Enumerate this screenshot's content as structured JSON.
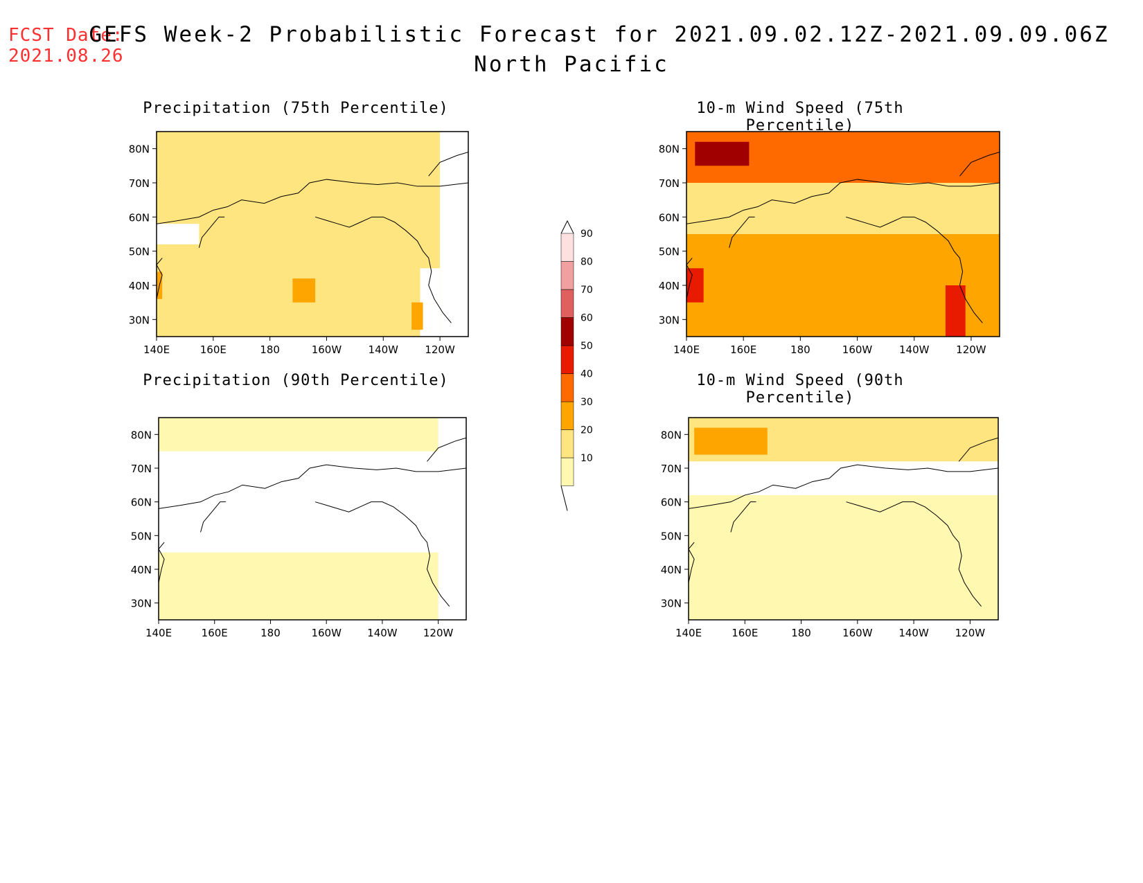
{
  "fcst_date": {
    "label": "FCST Date:",
    "value": "2021.08.26"
  },
  "title": {
    "line1": "GEFS Week-2 Probabilistic Forecast for 2021.09.02.12Z-2021.09.09.06Z",
    "line2": "North Pacific"
  },
  "colors": {
    "c10": "#fff8b0",
    "c20": "#ffe580",
    "c30": "#ffa500",
    "c40": "#ff6a00",
    "c50": "#e81a00",
    "c60": "#a00000",
    "c70": "#e06060",
    "c80": "#f0a0a0",
    "c90": "#fde0e0",
    "none": "#ffffff",
    "coast": "#000000"
  },
  "colorbar": {
    "levels": [
      "10",
      "20",
      "30",
      "40",
      "50",
      "60",
      "70",
      "80",
      "90"
    ]
  },
  "axes": {
    "x_ticks": [
      "140E",
      "160E",
      "180",
      "160W",
      "140W",
      "120W"
    ],
    "y_ticks": [
      "80N",
      "70N",
      "60N",
      "50N",
      "40N",
      "30N"
    ]
  },
  "panels": [
    {
      "id": "precip75",
      "title": "Precipitation (75th Percentile)",
      "fill": [
        {
          "lat": [
            70,
            85
          ],
          "lon_w": [
            140,
            240
          ],
          "level": "c20"
        },
        {
          "lat": [
            55,
            70
          ],
          "lon_w": [
            140,
            240
          ],
          "level": "c20"
        },
        {
          "lat": [
            25,
            55
          ],
          "lon_w": [
            140,
            240
          ],
          "level": "c20"
        },
        {
          "lat": [
            52,
            58
          ],
          "lon_w": [
            140,
            155
          ],
          "level": "none"
        },
        {
          "lat": [
            25,
            45
          ],
          "lon_w": [
            233,
            240
          ],
          "level": "none"
        },
        {
          "lat": [
            35,
            42
          ],
          "lon_w": [
            188,
            196
          ],
          "level": "c30"
        },
        {
          "lat": [
            27,
            35
          ],
          "lon_w": [
            230,
            234
          ],
          "level": "c30"
        },
        {
          "lat": [
            36,
            44
          ],
          "lon_w": [
            140,
            142
          ],
          "level": "c30"
        }
      ]
    },
    {
      "id": "wind75",
      "title": "10-m Wind Speed (75th Percentile)",
      "fill": [
        {
          "lat": [
            70,
            85
          ],
          "lon_w": [
            140,
            250
          ],
          "level": "c40"
        },
        {
          "lat": [
            75,
            82
          ],
          "lon_w": [
            143,
            162
          ],
          "level": "c60"
        },
        {
          "lat": [
            55,
            70
          ],
          "lon_w": [
            140,
            250
          ],
          "level": "c20"
        },
        {
          "lat": [
            25,
            55
          ],
          "lon_w": [
            140,
            250
          ],
          "level": "c30"
        },
        {
          "lat": [
            35,
            45
          ],
          "lon_w": [
            140,
            146
          ],
          "level": "c50"
        },
        {
          "lat": [
            25,
            40
          ],
          "lon_w": [
            231,
            238
          ],
          "level": "c50"
        }
      ]
    },
    {
      "id": "precip90",
      "title": "Precipitation (90th Percentile)",
      "fill": [
        {
          "lat": [
            75,
            85
          ],
          "lon_w": [
            140,
            240
          ],
          "level": "c10"
        },
        {
          "lat": [
            25,
            45
          ],
          "lon_w": [
            140,
            240
          ],
          "level": "c10"
        }
      ]
    },
    {
      "id": "wind90",
      "title": "10-m Wind Speed (90th Percentile)",
      "fill": [
        {
          "lat": [
            72,
            85
          ],
          "lon_w": [
            140,
            250
          ],
          "level": "c20"
        },
        {
          "lat": [
            74,
            82
          ],
          "lon_w": [
            142,
            168
          ],
          "level": "c30"
        },
        {
          "lat": [
            25,
            62
          ],
          "lon_w": [
            140,
            250
          ],
          "level": "c10"
        }
      ]
    }
  ]
}
